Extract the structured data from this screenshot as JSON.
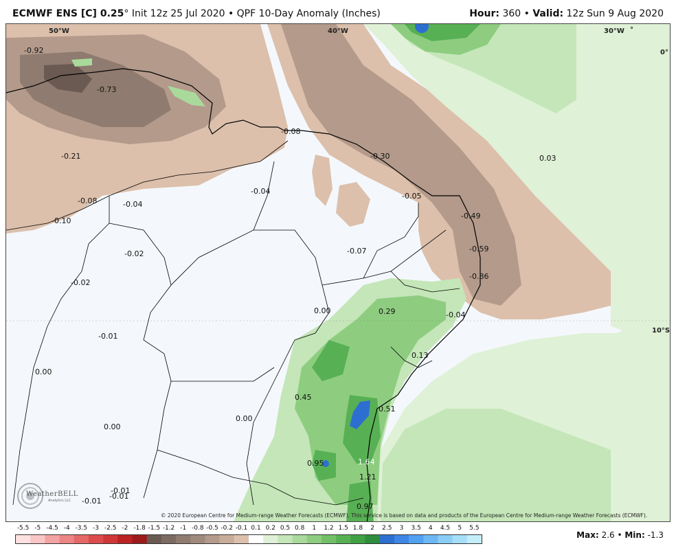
{
  "header": {
    "model": "ECMWF ENS [C] 0.25",
    "degree": "°",
    "init": " Init 12z 25 Jul 2020 • QPF 10-Day Anomaly (Inches)",
    "hour_label": "Hour:",
    "hour_value": " 360 • ",
    "valid_label": "Valid:",
    "valid_value": " 12z Sun 9 Aug 2020"
  },
  "map": {
    "coord_labels": [
      "50°W",
      "40°W",
      "30°W",
      "°",
      "0°",
      "10°S"
    ],
    "value_labels": [
      {
        "text": "-0.92",
        "color": "dark"
      },
      {
        "text": "-0.73",
        "color": "dark"
      },
      {
        "text": "-0.08",
        "color": "dark"
      },
      {
        "text": "-0.30",
        "color": "dark"
      },
      {
        "text": "0.03",
        "color": "dark"
      },
      {
        "text": "-0.21",
        "color": "dark"
      },
      {
        "text": "-0.04",
        "color": "dark"
      },
      {
        "text": "-0.08",
        "color": "dark"
      },
      {
        "text": "-0.04",
        "color": "dark"
      },
      {
        "text": "-0.05",
        "color": "dark"
      },
      {
        "text": "-0.10",
        "color": "dark"
      },
      {
        "text": "-0.49",
        "color": "dark"
      },
      {
        "text": "-0.02",
        "color": "dark"
      },
      {
        "text": "-0.07",
        "color": "dark"
      },
      {
        "text": "-0.59",
        "color": "dark"
      },
      {
        "text": "-0.02",
        "color": "dark"
      },
      {
        "text": "-0.86",
        "color": "dark"
      },
      {
        "text": "0.00",
        "color": "dark"
      },
      {
        "text": "0.29",
        "color": "dark"
      },
      {
        "text": "-0.04",
        "color": "dark"
      },
      {
        "text": "-0.01",
        "color": "dark"
      },
      {
        "text": "0.13",
        "color": "dark"
      },
      {
        "text": "0.00",
        "color": "dark"
      },
      {
        "text": "0.45",
        "color": "dark"
      },
      {
        "text": "0.51",
        "color": "dark"
      },
      {
        "text": "0.00",
        "color": "dark"
      },
      {
        "text": "0.00",
        "color": "dark"
      },
      {
        "text": "0.95",
        "color": "dark"
      },
      {
        "text": "1.64",
        "color": "light"
      },
      {
        "text": "1.21",
        "color": "dark"
      },
      {
        "text": "-0.01",
        "color": "dark"
      },
      {
        "text": "-0.01",
        "color": "dark"
      },
      {
        "text": "-0.01",
        "color": "dark"
      },
      {
        "text": "0.97",
        "color": "dark"
      }
    ],
    "copyright": "© 2020 European Centre for Medium-range Weather Forecasts (ECMWF). This service is based on data and products of the European Centre for Medium-range Weather Forecasts (ECMWF).",
    "logo_text": "WeatherBELL",
    "logo_sub": "Analytics LLC"
  },
  "colorbar": {
    "ticks": [
      "-5.5",
      "-5",
      "-4.5",
      "-4",
      "-3.5",
      "-3",
      "-2.5",
      "-2",
      "-1.8",
      "-1.5",
      "-1.2",
      "-1",
      "-0.8",
      "-0.5",
      "-0.2",
      "-0.1",
      "0.1",
      "0.2",
      "0.5",
      "0.8",
      "1",
      "1.2",
      "1.5",
      "1.8",
      "2",
      "2.5",
      "3",
      "3.5",
      "4",
      "4.5",
      "5",
      "5.5"
    ],
    "colors": [
      "#fde0e0",
      "#f9c6c6",
      "#f2a3a3",
      "#ec8585",
      "#e46868",
      "#dc4c4c",
      "#d03636",
      "#bb2222",
      "#9c1a1a",
      "#6b5a52",
      "#7d6a60",
      "#8f7b6f",
      "#a08a7d",
      "#b39a8b",
      "#c8ad9b",
      "#dcc0ac",
      "#ffffff",
      "#dff1d6",
      "#c4e6b8",
      "#a9da9b",
      "#8ecd80",
      "#72bf68",
      "#58b054",
      "#40a044",
      "#2e8c3c",
      "#2d6fd0",
      "#3d86e6",
      "#52a0f0",
      "#6db8f4",
      "#8acdf6",
      "#a6def8",
      "#c4eefa"
    ]
  },
  "footer": {
    "max_label": "Max:",
    "max_value": " 2.6 • ",
    "min_label": "Min:",
    "min_value": " -1.3"
  }
}
